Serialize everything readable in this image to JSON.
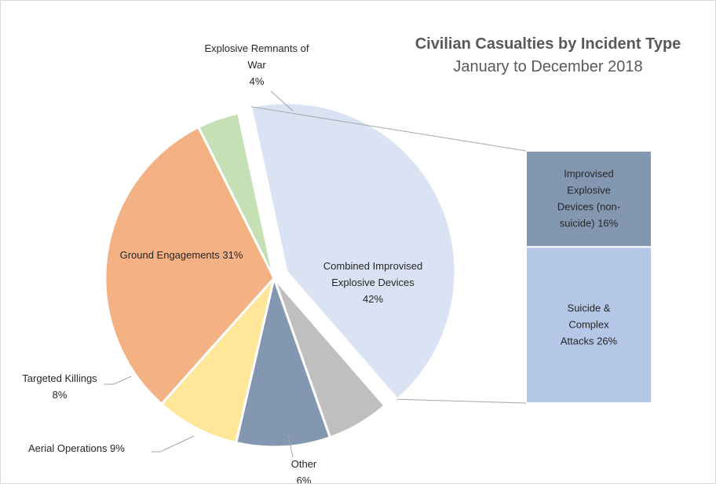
{
  "chart_data": {
    "type": "pie",
    "subtype": "pie-of-pie (bar of pie)",
    "title": "Civilian Casualties by Incident Type",
    "subtitle": "January to December 2018",
    "slices": [
      {
        "name": "Explosive Remnants of War",
        "value": 4,
        "label_lines": [
          "Explosive Remnants of",
          "War",
          "4%"
        ],
        "color": "#c5e0b4"
      },
      {
        "name": "Combined Improvised Explosive Devices",
        "value": 42,
        "label_lines": [
          "Combined Improvised",
          "Explosive Devices",
          "42%"
        ],
        "color": "#dae3f3",
        "exploded": true
      },
      {
        "name": "Other",
        "value": 6,
        "label_lines": [
          "Other",
          "6%"
        ],
        "color": "#bfbfbf"
      },
      {
        "name": "Aerial Operations",
        "value": 9,
        "label_lines": [
          "Aerial Operations      9%"
        ],
        "color": "#8497b0"
      },
      {
        "name": "Targeted Killings",
        "value": 8,
        "label_lines": [
          "Targeted Killings",
          "8%"
        ],
        "color": "#ffe699"
      },
      {
        "name": "Ground Engagements",
        "value": 31,
        "label_lines": [
          "Ground Engagements 31%"
        ],
        "color": "#f4b183"
      }
    ],
    "breakdown": {
      "of": "Combined Improvised Explosive Devices",
      "segments": [
        {
          "name": "Improvised Explosive Devices (non-suicide)",
          "value": 16,
          "label_lines": [
            "Improvised",
            "Explosive",
            "Devices (non-",
            "suicide) 16%"
          ],
          "color": "#8497b0"
        },
        {
          "name": "Suicide & Complex Attacks",
          "value": 26,
          "label_lines": [
            "Suicide &",
            "Complex",
            "Attacks 26%"
          ],
          "color": "#b4c7e7"
        }
      ]
    },
    "colors": {
      "text": "#262626",
      "title": "#595959",
      "leader_lines": "#a6a6a6",
      "border": "#d9d9d9"
    }
  }
}
